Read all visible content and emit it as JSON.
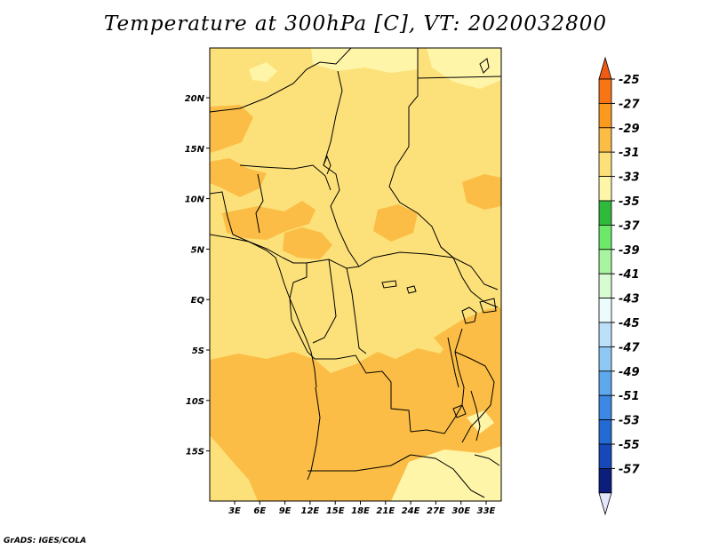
{
  "title": "Temperature at 300hPa [C], VT: 2020032800",
  "credit": "GrADS: IGES/COLA",
  "map": {
    "lat_labels": [
      "20N",
      "15N",
      "10N",
      "5N",
      "EQ",
      "5S",
      "10S",
      "15S"
    ],
    "lon_labels": [
      "3E",
      "6E",
      "9E",
      "12E",
      "15E",
      "18E",
      "21E",
      "24E",
      "27E",
      "30E",
      "33E"
    ],
    "field_colors": {
      "light": "#fff5a8",
      "base": "#fce17a",
      "warm": "#fbbd45"
    }
  },
  "colorbar": {
    "labels": [
      "-25",
      "-27",
      "-29",
      "-31",
      "-33",
      "-35",
      "-37",
      "-39",
      "-41",
      "-43",
      "-45",
      "-47",
      "-49",
      "-51",
      "-53",
      "-55",
      "-57"
    ],
    "top_color": "#f05a14",
    "bottom_color": "#e6e6fa",
    "colors": [
      "#f77514",
      "#fb9a1e",
      "#fbbd45",
      "#fce17a",
      "#fff5a8",
      "#2fba3c",
      "#6ee86a",
      "#a7f4a1",
      "#d8fbd2",
      "#ecfcfc",
      "#bce0fa",
      "#8ec8f4",
      "#5fa8ee",
      "#3c88e4",
      "#236ad2",
      "#1648b8",
      "#0c1e7c"
    ]
  }
}
